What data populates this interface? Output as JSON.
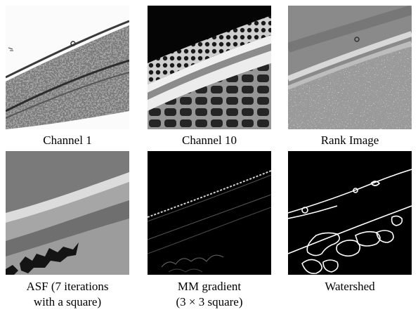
{
  "figure": {
    "panels": [
      {
        "id": "channel-1",
        "caption_lines": [
          "Channel 1"
        ],
        "style": "grayscale"
      },
      {
        "id": "channel-10",
        "caption_lines": [
          "Channel 10"
        ],
        "style": "dark-bright-cells"
      },
      {
        "id": "rank-image",
        "caption_lines": [
          "Rank Image"
        ],
        "style": "gray-speckled"
      },
      {
        "id": "asf",
        "caption_lines": [
          "ASF (7 iterations",
          "with a square)"
        ],
        "style": "flat-gray-regions"
      },
      {
        "id": "mm-gradient",
        "caption_lines": [
          "MM gradient",
          "(3 × 3 square)"
        ],
        "style": "black-thin-edges"
      },
      {
        "id": "watershed",
        "caption_lines": [
          "Watershed"
        ],
        "style": "black-white-contours"
      }
    ]
  }
}
